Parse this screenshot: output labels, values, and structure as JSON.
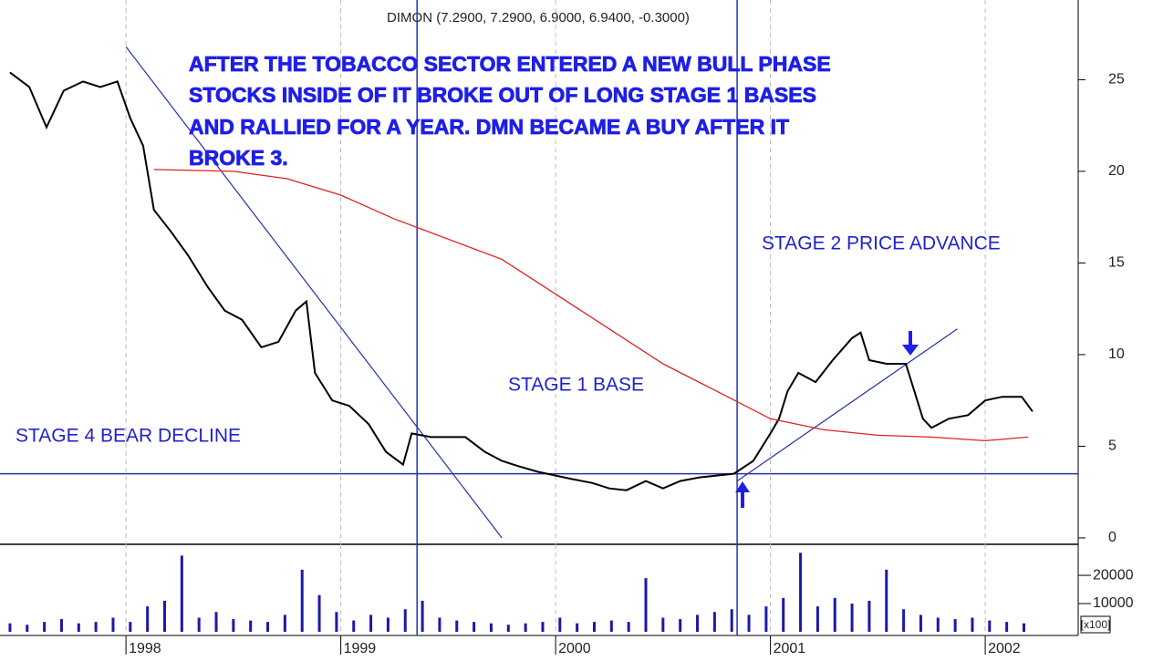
{
  "chart_data": [
    {
      "type": "line",
      "title": "DIMON (7.2900, 7.2900, 6.9000, 6.9400, -0.3000)",
      "notes": [
        "AFTER THE TOBACCO SECTOR ENTERED A NEW BULL PHASE",
        "STOCKS INSIDE OF IT BROKE OUT OF LONG STAGE 1 BASES",
        "AND RALLIED FOR A YEAR.  DMN BECAME A BUY AFTER IT",
        "BROKE 3."
      ],
      "annotations": [
        "STAGE 2 PRICE ADVANCE",
        "STAGE 1 BASE",
        "STAGE 4 BEAR DECLINE"
      ],
      "xlim": [
        1997.456,
        2002.42
      ],
      "xticks": [
        1998,
        1999,
        2000,
        2001,
        2002
      ],
      "ylim": [
        -0.35,
        28.95
      ],
      "yticks": [
        0,
        5,
        10,
        15,
        20,
        25
      ],
      "grid": true,
      "series": [
        {
          "color": "#000000",
          "x": [
            1997.46,
            1997.55,
            1997.63,
            1997.71,
            1997.8,
            1997.88,
            1997.96,
            1998.02,
            1998.08,
            1998.13,
            1998.21,
            1998.29,
            1998.38,
            1998.46,
            1998.54,
            1998.63,
            1998.71,
            1998.79,
            1998.84,
            1998.88,
            1998.96,
            1999.04,
            1999.13,
            1999.21,
            1999.29,
            1999.33,
            1999.42,
            1999.5,
            1999.58,
            1999.67,
            1999.75,
            1999.83,
            1999.92,
            2000.0,
            2000.08,
            2000.17,
            2000.25,
            2000.33,
            2000.42,
            2000.5,
            2000.58,
            2000.67,
            2000.75,
            2000.83,
            2000.92,
            2001.0,
            2001.04,
            2001.08,
            2001.13,
            2001.21,
            2001.29,
            2001.38,
            2001.42,
            2001.46,
            2001.54,
            2001.63,
            2001.67,
            2001.71,
            2001.75,
            2001.83,
            2001.92,
            2002.0,
            2002.08,
            2002.17,
            2002.22
          ],
          "values": [
            25.4,
            24.6,
            22.4,
            24.4,
            24.9,
            24.6,
            24.9,
            22.9,
            21.4,
            17.9,
            16.7,
            15.4,
            13.7,
            12.4,
            11.9,
            10.4,
            10.7,
            12.4,
            12.9,
            9.0,
            7.5,
            7.2,
            6.2,
            4.7,
            4.0,
            5.7,
            5.5,
            5.5,
            5.5,
            4.7,
            4.2,
            3.9,
            3.6,
            3.4,
            3.2,
            3.0,
            2.7,
            2.6,
            3.1,
            2.7,
            3.1,
            3.3,
            3.4,
            3.5,
            4.2,
            5.7,
            6.5,
            8.0,
            9.0,
            8.5,
            9.7,
            10.9,
            11.2,
            9.7,
            9.5,
            9.5,
            8.0,
            6.5,
            6.0,
            6.5,
            6.7,
            7.5,
            7.7,
            7.7,
            6.9
          ]
        },
        {
          "color": "#e02020",
          "x": [
            1998.13,
            1998.5,
            1998.75,
            1999.0,
            1999.25,
            1999.5,
            1999.75,
            2000.0,
            2000.25,
            2000.5,
            2000.75,
            2001.0,
            2001.25,
            2001.5,
            2001.75,
            2002.0,
            2002.2
          ],
          "values": [
            20.1,
            20.0,
            19.6,
            18.7,
            17.4,
            16.3,
            15.2,
            13.3,
            11.4,
            9.5,
            8.0,
            6.5,
            5.9,
            5.6,
            5.5,
            5.3,
            5.5
          ]
        }
      ],
      "hlines": [
        3.5
      ],
      "vlines": [
        1999.355,
        2000.845
      ],
      "trendlines": [
        {
          "x": [
            1998.0,
            1999.75
          ],
          "y": [
            26.8,
            0
          ]
        },
        {
          "x": [
            2000.845,
            2001.87
          ],
          "y": [
            3.1,
            11.4
          ]
        }
      ],
      "line_color": "#2233aa"
    },
    {
      "type": "bar",
      "unit_label": "[x100]",
      "xlim": [
        1997.456,
        2002.42
      ],
      "xticks": [
        1998,
        1999,
        2000,
        2001,
        2002
      ],
      "ylim": [
        -1300,
        31000
      ],
      "yticks": [
        10000,
        20000
      ],
      "color": "#1a1aa8",
      "x": [
        1997.46,
        1997.54,
        1997.62,
        1997.7,
        1997.78,
        1997.86,
        1997.94,
        1998.02,
        1998.1,
        1998.18,
        1998.26,
        1998.34,
        1998.42,
        1998.5,
        1998.58,
        1998.66,
        1998.74,
        1998.82,
        1998.9,
        1998.98,
        1999.06,
        1999.14,
        1999.22,
        1999.3,
        1999.38,
        1999.46,
        1999.54,
        1999.62,
        1999.7,
        1999.78,
        1999.86,
        1999.94,
        2000.02,
        2000.1,
        2000.18,
        2000.26,
        2000.34,
        2000.42,
        2000.5,
        2000.58,
        2000.66,
        2000.74,
        2000.82,
        2000.9,
        2000.98,
        2001.06,
        2001.14,
        2001.22,
        2001.3,
        2001.38,
        2001.46,
        2001.54,
        2001.62,
        2001.7,
        2001.78,
        2001.86,
        2001.94,
        2002.02,
        2002.1,
        2002.18
      ],
      "values": [
        3000,
        2500,
        3500,
        4500,
        3000,
        3500,
        5000,
        3500,
        9000,
        11000,
        27000,
        5000,
        7000,
        4500,
        4000,
        3500,
        6000,
        22000,
        13000,
        7000,
        4000,
        6000,
        5000,
        8000,
        11000,
        5000,
        4000,
        3500,
        3000,
        2500,
        3000,
        3500,
        5000,
        3000,
        3500,
        4000,
        3500,
        19000,
        5000,
        4500,
        6000,
        7000,
        8000,
        6000,
        9000,
        12000,
        28000,
        9000,
        12000,
        10000,
        11000,
        22000,
        8000,
        6000,
        5000,
        4500,
        5000,
        4000,
        3500,
        3000
      ]
    }
  ]
}
